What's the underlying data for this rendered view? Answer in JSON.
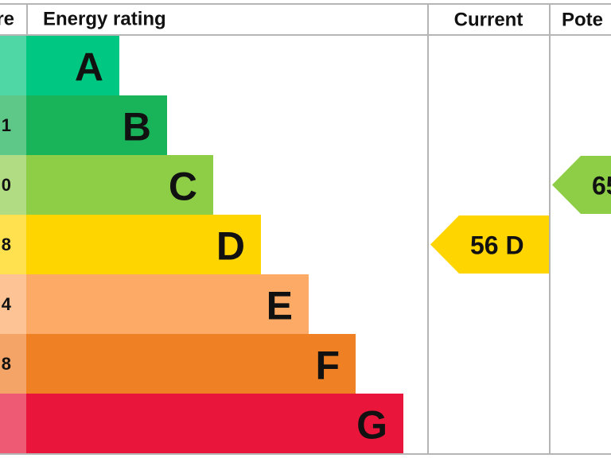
{
  "header": {
    "score": "re",
    "rating": "Energy rating",
    "current": "Current",
    "potential": "Pote"
  },
  "bands": [
    {
      "letter": "A",
      "score": null,
      "color": "#00c781",
      "light": "#4fd8a5"
    },
    {
      "letter": "B",
      "score": "1",
      "color": "#19b459",
      "light": "#5dc888"
    },
    {
      "letter": "C",
      "score": "0",
      "color": "#8dce46",
      "light": "#b1dc84"
    },
    {
      "letter": "D",
      "score": "8",
      "color": "#ffd500",
      "light": "#ffe14f"
    },
    {
      "letter": "E",
      "score": "4",
      "color": "#fcaa65",
      "light": "#fdc394"
    },
    {
      "letter": "F",
      "score": "8",
      "color": "#ef8023",
      "light": "#f4a466"
    },
    {
      "letter": "G",
      "score": null,
      "color": "#e9153b",
      "light": "#ee5a73"
    }
  ],
  "current": {
    "label": "56 D",
    "color": "#ffd500"
  },
  "potential": {
    "label": "65",
    "color": "#8dce46"
  }
}
